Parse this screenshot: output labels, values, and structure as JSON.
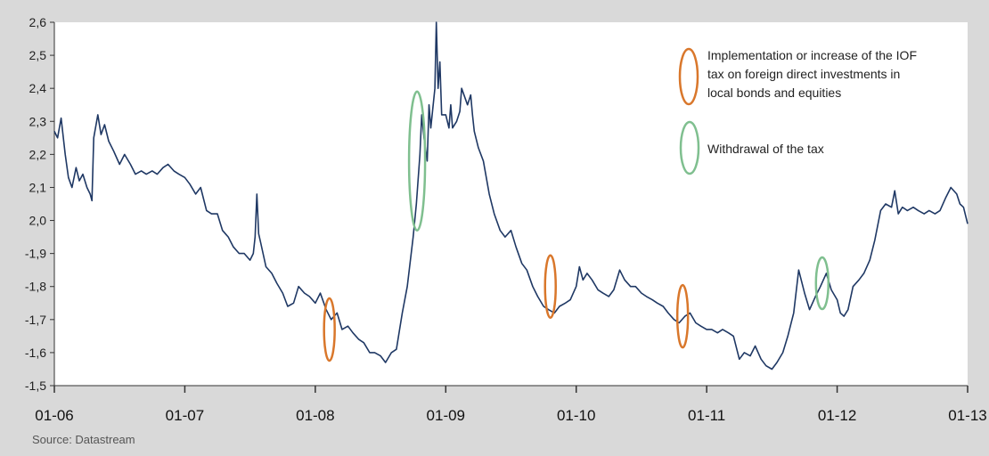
{
  "chart_data": {
    "type": "line",
    "ylabels": [
      "-1,5",
      "-1,6",
      "-1,7",
      "-1,8",
      "-1,9",
      "2,0",
      "2,1",
      "2,2",
      "2,3",
      "2,4",
      "2,5",
      "2,6"
    ],
    "ylim": [
      1.5,
      2.6
    ],
    "xlabels": [
      "01-06",
      "01-07",
      "01-08",
      "01-09",
      "01-10",
      "01-11",
      "01-12",
      "01-13"
    ],
    "xlim": [
      "2006-01",
      "2013-01"
    ],
    "grid": false,
    "colors": {
      "background": "#d9d9d9",
      "plot_bg": "#ffffff",
      "series": "#1f3864",
      "iof_increase": "#d9772b",
      "tax_withdrawal": "#7fbf8f"
    },
    "series": [
      {
        "values": [
          [
            "2006-01",
            2.27
          ],
          [
            "2006-01-10",
            2.25
          ],
          [
            "2006-01-20",
            2.31
          ],
          [
            "2006-02",
            2.2
          ],
          [
            "2006-02-10",
            2.13
          ],
          [
            "2006-02-20",
            2.1
          ],
          [
            "2006-03",
            2.16
          ],
          [
            "2006-03-10",
            2.12
          ],
          [
            "2006-03-20",
            2.14
          ],
          [
            "2006-04",
            2.1
          ],
          [
            "2006-04-10",
            2.08
          ],
          [
            "2006-04-15",
            2.06
          ],
          [
            "2006-04-20",
            2.25
          ],
          [
            "2006-05",
            2.32
          ],
          [
            "2006-05-10",
            2.26
          ],
          [
            "2006-05-20",
            2.29
          ],
          [
            "2006-06",
            2.24
          ],
          [
            "2006-06-15",
            2.21
          ],
          [
            "2006-07",
            2.17
          ],
          [
            "2006-07-15",
            2.2
          ],
          [
            "2006-08",
            2.17
          ],
          [
            "2006-08-15",
            2.14
          ],
          [
            "2006-09",
            2.15
          ],
          [
            "2006-09-15",
            2.14
          ],
          [
            "2006-10",
            2.15
          ],
          [
            "2006-10-15",
            2.14
          ],
          [
            "2006-11",
            2.16
          ],
          [
            "2006-11-15",
            2.17
          ],
          [
            "2006-12",
            2.15
          ],
          [
            "2006-12-15",
            2.14
          ],
          [
            "2007-01",
            2.13
          ],
          [
            "2007-01-15",
            2.11
          ],
          [
            "2007-02",
            2.08
          ],
          [
            "2007-02-15",
            2.1
          ],
          [
            "2007-03",
            2.03
          ],
          [
            "2007-03-15",
            2.02
          ],
          [
            "2007-04",
            2.02
          ],
          [
            "2007-04-15",
            1.97
          ],
          [
            "2007-05",
            1.95
          ],
          [
            "2007-05-15",
            1.92
          ],
          [
            "2007-06",
            1.9
          ],
          [
            "2007-06-15",
            1.9
          ],
          [
            "2007-07",
            1.88
          ],
          [
            "2007-07-10",
            1.9
          ],
          [
            "2007-07-15",
            1.95
          ],
          [
            "2007-07-20",
            2.08
          ],
          [
            "2007-07-25",
            1.96
          ],
          [
            "2007-08",
            1.93
          ],
          [
            "2007-08-15",
            1.86
          ],
          [
            "2007-09",
            1.84
          ],
          [
            "2007-09-15",
            1.81
          ],
          [
            "2007-10",
            1.78
          ],
          [
            "2007-10-15",
            1.74
          ],
          [
            "2007-11",
            1.75
          ],
          [
            "2007-11-15",
            1.8
          ],
          [
            "2007-12",
            1.78
          ],
          [
            "2007-12-15",
            1.77
          ],
          [
            "2008-01",
            1.75
          ],
          [
            "2008-01-15",
            1.78
          ],
          [
            "2008-02",
            1.73
          ],
          [
            "2008-02-15",
            1.7
          ],
          [
            "2008-03",
            1.72
          ],
          [
            "2008-03-15",
            1.67
          ],
          [
            "2008-04",
            1.68
          ],
          [
            "2008-04-15",
            1.66
          ],
          [
            "2008-05",
            1.64
          ],
          [
            "2008-05-15",
            1.63
          ],
          [
            "2008-06",
            1.6
          ],
          [
            "2008-06-15",
            1.6
          ],
          [
            "2008-07",
            1.59
          ],
          [
            "2008-07-15",
            1.57
          ],
          [
            "2008-08",
            1.6
          ],
          [
            "2008-08-15",
            1.61
          ],
          [
            "2008-09",
            1.72
          ],
          [
            "2008-09-15",
            1.8
          ],
          [
            "2008-10",
            1.95
          ],
          [
            "2008-10-10",
            2.05
          ],
          [
            "2008-10-20",
            2.2
          ],
          [
            "2008-10-25",
            2.32
          ],
          [
            "2008-11",
            2.25
          ],
          [
            "2008-11-10",
            2.18
          ],
          [
            "2008-11-15",
            2.35
          ],
          [
            "2008-11-20",
            2.28
          ],
          [
            "2008-12",
            2.4
          ],
          [
            "2008-12-05",
            2.6
          ],
          [
            "2008-12-10",
            2.4
          ],
          [
            "2008-12-15",
            2.48
          ],
          [
            "2008-12-20",
            2.32
          ],
          [
            "2009-01",
            2.32
          ],
          [
            "2009-01-10",
            2.28
          ],
          [
            "2009-01-15",
            2.35
          ],
          [
            "2009-01-20",
            2.28
          ],
          [
            "2009-02",
            2.3
          ],
          [
            "2009-02-10",
            2.33
          ],
          [
            "2009-02-15",
            2.4
          ],
          [
            "2009-03",
            2.35
          ],
          [
            "2009-03-10",
            2.38
          ],
          [
            "2009-03-15",
            2.32
          ],
          [
            "2009-03-20",
            2.27
          ],
          [
            "2009-04",
            2.22
          ],
          [
            "2009-04-15",
            2.18
          ],
          [
            "2009-05",
            2.08
          ],
          [
            "2009-05-15",
            2.02
          ],
          [
            "2009-06",
            1.97
          ],
          [
            "2009-06-15",
            1.95
          ],
          [
            "2009-07",
            1.97
          ],
          [
            "2009-07-15",
            1.92
          ],
          [
            "2009-08",
            1.87
          ],
          [
            "2009-08-15",
            1.85
          ],
          [
            "2009-09",
            1.8
          ],
          [
            "2009-09-15",
            1.77
          ],
          [
            "2009-10",
            1.74
          ],
          [
            "2009-10-15",
            1.73
          ],
          [
            "2009-11",
            1.72
          ],
          [
            "2009-11-15",
            1.74
          ],
          [
            "2009-12",
            1.75
          ],
          [
            "2009-12-15",
            1.76
          ],
          [
            "2010-01",
            1.8
          ],
          [
            "2010-01-10",
            1.86
          ],
          [
            "2010-01-20",
            1.82
          ],
          [
            "2010-02",
            1.84
          ],
          [
            "2010-02-15",
            1.82
          ],
          [
            "2010-03",
            1.79
          ],
          [
            "2010-03-15",
            1.78
          ],
          [
            "2010-04",
            1.77
          ],
          [
            "2010-04-15",
            1.79
          ],
          [
            "2010-05",
            1.85
          ],
          [
            "2010-05-15",
            1.82
          ],
          [
            "2010-06",
            1.8
          ],
          [
            "2010-06-15",
            1.8
          ],
          [
            "2010-07",
            1.78
          ],
          [
            "2010-07-15",
            1.77
          ],
          [
            "2010-08",
            1.76
          ],
          [
            "2010-08-15",
            1.75
          ],
          [
            "2010-09",
            1.74
          ],
          [
            "2010-09-15",
            1.72
          ],
          [
            "2010-10",
            1.7
          ],
          [
            "2010-10-15",
            1.69
          ],
          [
            "2010-11",
            1.71
          ],
          [
            "2010-11-15",
            1.72
          ],
          [
            "2010-12",
            1.69
          ],
          [
            "2010-12-15",
            1.68
          ],
          [
            "2011-01",
            1.67
          ],
          [
            "2011-01-15",
            1.67
          ],
          [
            "2011-02",
            1.66
          ],
          [
            "2011-02-15",
            1.67
          ],
          [
            "2011-03",
            1.66
          ],
          [
            "2011-03-15",
            1.65
          ],
          [
            "2011-04",
            1.58
          ],
          [
            "2011-04-15",
            1.6
          ],
          [
            "2011-05",
            1.59
          ],
          [
            "2011-05-15",
            1.62
          ],
          [
            "2011-06",
            1.58
          ],
          [
            "2011-06-15",
            1.56
          ],
          [
            "2011-07",
            1.55
          ],
          [
            "2011-07-15",
            1.57
          ],
          [
            "2011-08",
            1.6
          ],
          [
            "2011-08-15",
            1.65
          ],
          [
            "2011-09",
            1.72
          ],
          [
            "2011-09-15",
            1.85
          ],
          [
            "2011-10",
            1.78
          ],
          [
            "2011-10-15",
            1.73
          ],
          [
            "2011-11",
            1.77
          ],
          [
            "2011-11-15",
            1.8
          ],
          [
            "2011-12",
            1.84
          ],
          [
            "2011-12-15",
            1.79
          ],
          [
            "2012-01",
            1.76
          ],
          [
            "2012-01-10",
            1.72
          ],
          [
            "2012-01-20",
            1.71
          ],
          [
            "2012-02",
            1.73
          ],
          [
            "2012-02-15",
            1.8
          ],
          [
            "2012-03",
            1.82
          ],
          [
            "2012-03-15",
            1.84
          ],
          [
            "2012-04",
            1.88
          ],
          [
            "2012-04-15",
            1.94
          ],
          [
            "2012-05",
            2.03
          ],
          [
            "2012-05-15",
            2.05
          ],
          [
            "2012-06",
            2.04
          ],
          [
            "2012-06-10",
            2.09
          ],
          [
            "2012-06-20",
            2.02
          ],
          [
            "2012-07",
            2.04
          ],
          [
            "2012-07-15",
            2.03
          ],
          [
            "2012-08",
            2.04
          ],
          [
            "2012-08-15",
            2.03
          ],
          [
            "2012-09",
            2.02
          ],
          [
            "2012-09-15",
            2.03
          ],
          [
            "2012-10",
            2.02
          ],
          [
            "2012-10-15",
            2.03
          ],
          [
            "2012-11",
            2.07
          ],
          [
            "2012-11-15",
            2.1
          ],
          [
            "2012-12",
            2.08
          ],
          [
            "2012-12-10",
            2.05
          ],
          [
            "2012-12-20",
            2.04
          ],
          [
            "2013-01",
            1.99
          ]
        ]
      }
    ],
    "annotations": {
      "iof_increase": [
        {
          "x": "2008-02-10",
          "y": 1.67
        },
        {
          "x": "2009-10-20",
          "y": 1.8
        },
        {
          "x": "2010-10-25",
          "y": 1.71
        }
      ],
      "tax_withdrawal": [
        {
          "x": "2008-10-12",
          "y": 2.18
        },
        {
          "x": "2011-11-20",
          "y": 1.81
        }
      ]
    },
    "legend": {
      "placement": "top-right",
      "iof_increase": "Implementation or increase of the IOF tax on foreign direct investments in local bonds and equities",
      "iof_increase_lines": [
        "Implementation or increase of the IOF",
        "tax on foreign direct investments in",
        "local bonds and equities"
      ],
      "tax_withdrawal": "Withdrawal of the tax"
    }
  },
  "source": "Source: Datastream"
}
